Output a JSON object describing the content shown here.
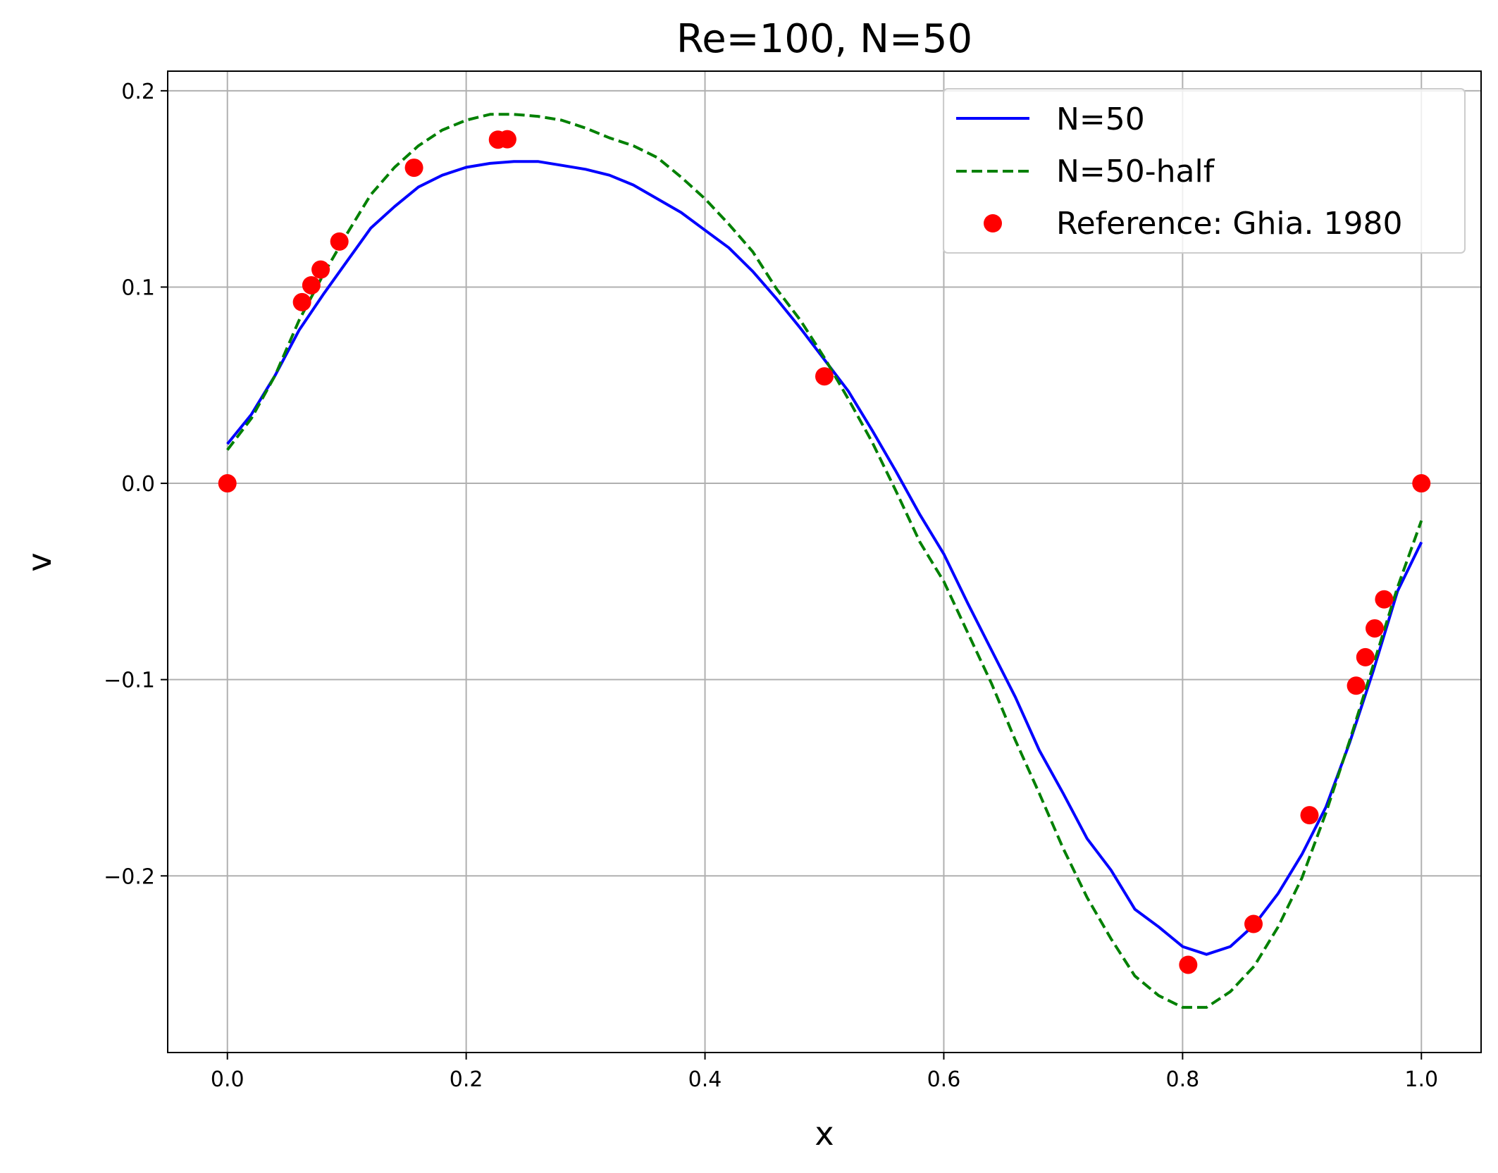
{
  "chart_data": {
    "type": "line",
    "title": "Re=100, N=50",
    "xlabel": "x",
    "ylabel": "v",
    "xlim": [
      -0.05,
      1.05
    ],
    "ylim": [
      -0.29,
      0.21
    ],
    "xticks": [
      0.0,
      0.2,
      0.4,
      0.6,
      0.8,
      1.0
    ],
    "xtick_labels": [
      "0.0",
      "0.2",
      "0.4",
      "0.6",
      "0.8",
      "1.0"
    ],
    "yticks": [
      -0.2,
      -0.1,
      0.0,
      0.1,
      0.2
    ],
    "ytick_labels": [
      "−0.2",
      "−0.1",
      "0.0",
      "0.1",
      "0.2"
    ],
    "grid": true,
    "legend_position": "top-right",
    "series": [
      {
        "name": "N=50",
        "style": "solid",
        "color": "#0000ff",
        "x": [
          0.0,
          0.02,
          0.04,
          0.06,
          0.08,
          0.1,
          0.12,
          0.14,
          0.16,
          0.18,
          0.2,
          0.22,
          0.24,
          0.26,
          0.28,
          0.3,
          0.32,
          0.34,
          0.36,
          0.38,
          0.4,
          0.42,
          0.44,
          0.46,
          0.48,
          0.5,
          0.52,
          0.54,
          0.56,
          0.58,
          0.6,
          0.62,
          0.64,
          0.66,
          0.68,
          0.7,
          0.72,
          0.74,
          0.76,
          0.78,
          0.8,
          0.82,
          0.84,
          0.86,
          0.88,
          0.9,
          0.92,
          0.94,
          0.96,
          0.98,
          1.0
        ],
        "y": [
          0.02,
          0.035,
          0.055,
          0.078,
          0.096,
          0.113,
          0.13,
          0.141,
          0.151,
          0.157,
          0.161,
          0.163,
          0.164,
          0.164,
          0.162,
          0.16,
          0.157,
          0.152,
          0.145,
          0.138,
          0.129,
          0.12,
          0.108,
          0.094,
          0.079,
          0.063,
          0.047,
          0.027,
          0.006,
          -0.016,
          -0.036,
          -0.061,
          -0.085,
          -0.109,
          -0.136,
          -0.158,
          -0.181,
          -0.197,
          -0.217,
          -0.226,
          -0.236,
          -0.24,
          -0.236,
          -0.225,
          -0.209,
          -0.189,
          -0.165,
          -0.132,
          -0.095,
          -0.055,
          -0.03
        ]
      },
      {
        "name": "N=50-half",
        "style": "dashed",
        "color": "#008000",
        "x": [
          0.0,
          0.02,
          0.04,
          0.06,
          0.08,
          0.1,
          0.12,
          0.14,
          0.16,
          0.18,
          0.2,
          0.22,
          0.24,
          0.26,
          0.28,
          0.3,
          0.32,
          0.34,
          0.36,
          0.38,
          0.4,
          0.42,
          0.44,
          0.46,
          0.48,
          0.5,
          0.52,
          0.54,
          0.56,
          0.58,
          0.6,
          0.62,
          0.64,
          0.66,
          0.68,
          0.7,
          0.72,
          0.74,
          0.76,
          0.78,
          0.8,
          0.82,
          0.84,
          0.86,
          0.88,
          0.9,
          0.92,
          0.94,
          0.96,
          0.98,
          1.0
        ],
        "y": [
          0.017,
          0.033,
          0.055,
          0.083,
          0.106,
          0.127,
          0.147,
          0.161,
          0.172,
          0.18,
          0.185,
          0.188,
          0.188,
          0.187,
          0.185,
          0.181,
          0.176,
          0.172,
          0.166,
          0.156,
          0.145,
          0.132,
          0.118,
          0.099,
          0.083,
          0.064,
          0.043,
          0.021,
          -0.004,
          -0.03,
          -0.05,
          -0.076,
          -0.102,
          -0.131,
          -0.158,
          -0.186,
          -0.211,
          -0.232,
          -0.251,
          -0.261,
          -0.267,
          -0.267,
          -0.259,
          -0.246,
          -0.226,
          -0.201,
          -0.168,
          -0.131,
          -0.092,
          -0.053,
          -0.019
        ]
      },
      {
        "name": "Reference: Ghia. 1980",
        "style": "markers",
        "color": "#ff0000",
        "x": [
          0.0,
          0.0625,
          0.0703,
          0.0781,
          0.0938,
          0.1563,
          0.2266,
          0.2344,
          0.5,
          0.8047,
          0.8594,
          0.9063,
          0.9453,
          0.9531,
          0.9609,
          0.9688,
          1.0
        ],
        "y": [
          0.0,
          0.0923,
          0.1009,
          0.1089,
          0.1232,
          0.1608,
          0.1751,
          0.1753,
          0.0545,
          -0.2453,
          -0.2245,
          -0.1691,
          -0.1031,
          -0.0886,
          -0.0739,
          -0.0591,
          0.0
        ]
      }
    ]
  }
}
